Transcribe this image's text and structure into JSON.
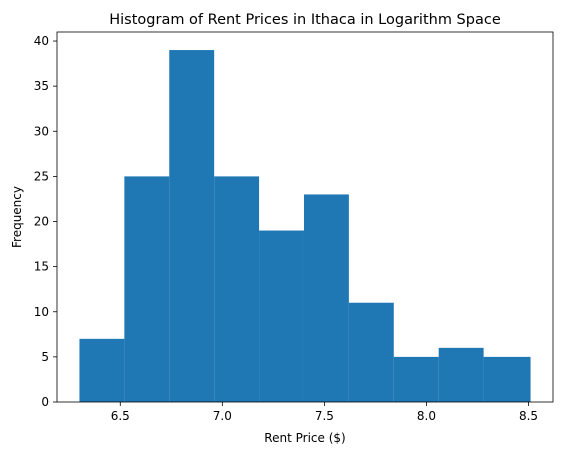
{
  "chart_data": {
    "type": "bar",
    "title": "Histogram of Rent Prices in Ithaca in Logarithm Space",
    "xlabel": "Rent Price ($)",
    "ylabel": "Frequency",
    "bin_edges": [
      6.3,
      6.52,
      6.74,
      6.96,
      7.18,
      7.4,
      7.62,
      7.84,
      8.06,
      8.28,
      8.51
    ],
    "values": [
      7,
      25,
      39,
      25,
      19,
      23,
      11,
      5,
      6,
      5
    ],
    "xlim": [
      6.19,
      8.62
    ],
    "ylim": [
      0,
      41
    ],
    "xticks": [
      6.5,
      7.0,
      7.5,
      8.0,
      8.5
    ],
    "xtick_labels": [
      "6.5",
      "7.0",
      "7.5",
      "8.0",
      "8.5"
    ],
    "yticks": [
      0,
      5,
      10,
      15,
      20,
      25,
      30,
      35,
      40
    ],
    "ytick_labels": [
      "0",
      "5",
      "10",
      "15",
      "20",
      "25",
      "30",
      "35",
      "40"
    ],
    "bar_color": "#1f77b4",
    "grid": false
  }
}
